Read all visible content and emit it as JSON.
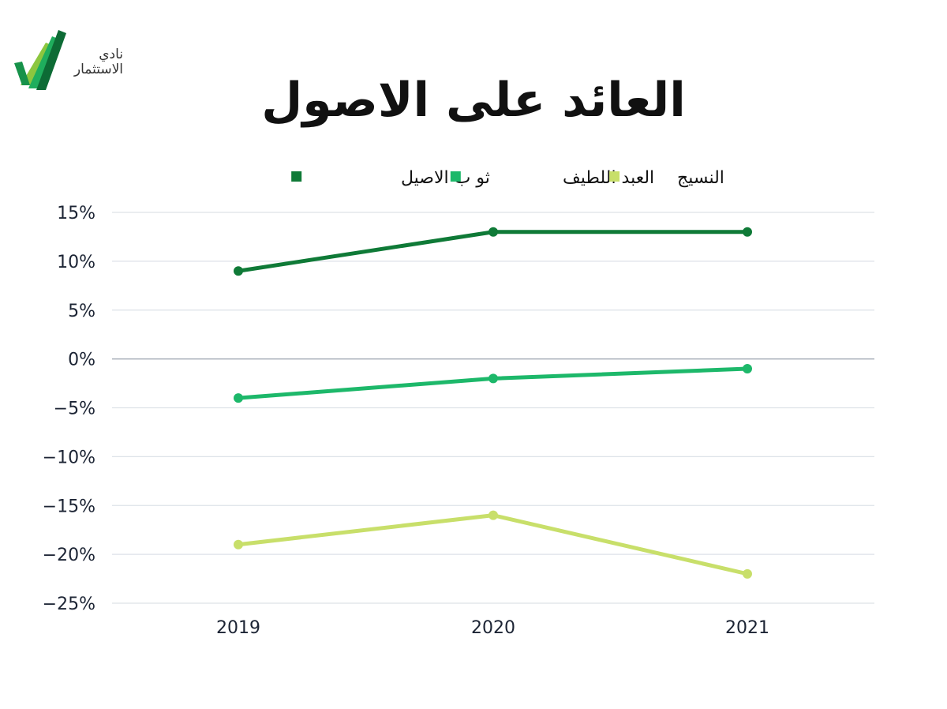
{
  "brand": {
    "line1": "نادي",
    "line2": "الاستثمار",
    "colors": [
      "#0d6b35",
      "#17924a",
      "#1fae5d",
      "#8cc63f"
    ]
  },
  "chart_data": {
    "type": "line",
    "title": "العائد على الاصول",
    "categories": [
      "2019",
      "2020",
      "2021"
    ],
    "series": [
      {
        "name": "ثو ب الاصيل",
        "color": "#0f7a37",
        "values": [
          9,
          13,
          13
        ]
      },
      {
        "name": "العبد اللطيف",
        "color": "#1db86a",
        "values": [
          -4,
          -2,
          -1
        ]
      },
      {
        "name": "النسيج",
        "color": "#c8df6a",
        "values": [
          -19,
          -16,
          -22
        ]
      }
    ],
    "ylim": [
      -25,
      15
    ],
    "yticks": [
      15,
      10,
      5,
      0,
      -5,
      -10,
      -15,
      -20,
      -25
    ],
    "ytick_labels": [
      "15%",
      "10%",
      "5%",
      "0%",
      "−5%",
      "−10%",
      "−15%",
      "−20%",
      "−25%"
    ],
    "grid": true,
    "legend": "top-center",
    "xlabel": "",
    "ylabel": ""
  }
}
